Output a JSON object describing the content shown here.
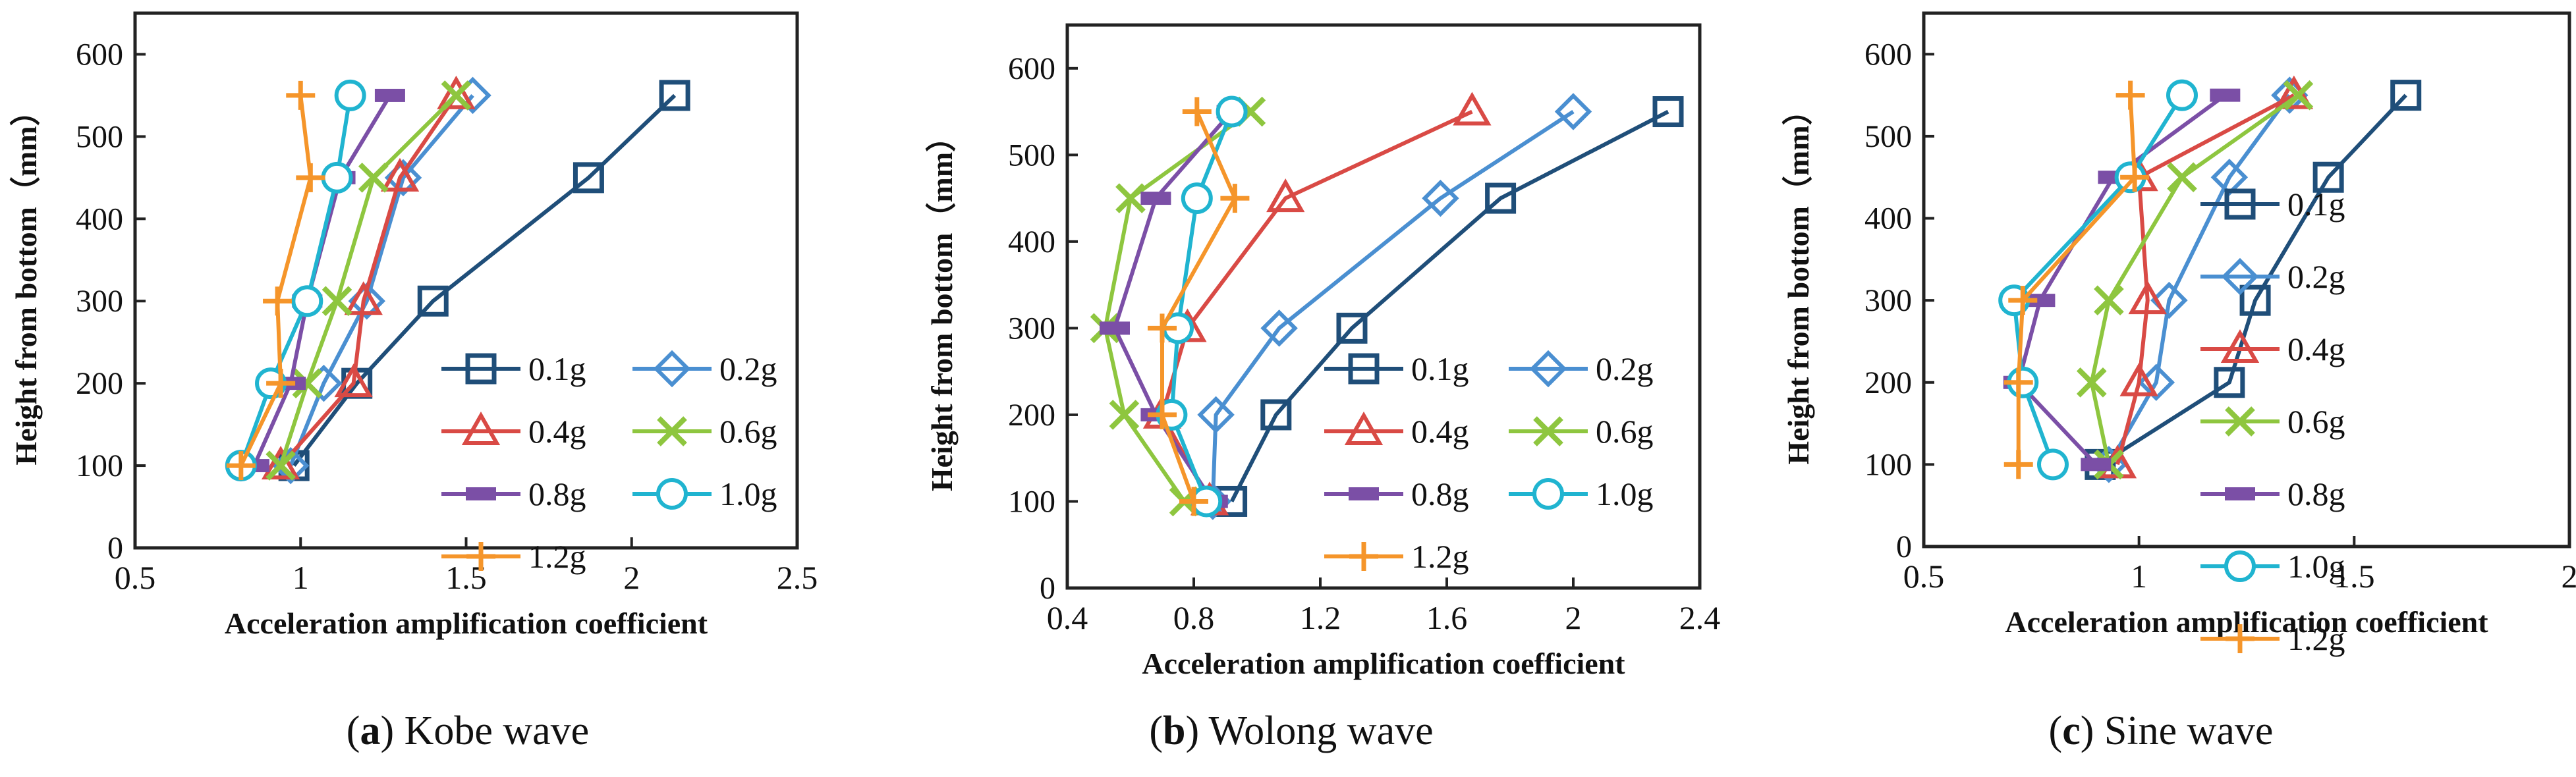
{
  "colors": {
    "0.1g": "#1f4e79",
    "0.2g": "#4a8fd1",
    "0.4g": "#d94a45",
    "0.6g": "#8ec63f",
    "0.8g": "#7b4fa6",
    "1.0g": "#20b4d0",
    "1.2g": "#f5952a",
    "axis": "#222222"
  },
  "markers": {
    "0.1g": "square",
    "0.2g": "diamond",
    "0.4g": "triangle",
    "0.6g": "x",
    "0.8g": "bar",
    "1.0g": "circle",
    "1.2g": "plus"
  },
  "chart_data": [
    {
      "type": "line",
      "id": "a",
      "caption": {
        "letter": "a",
        "text": "Kobe wave"
      },
      "xlabel": "Acceleration amplification coefficient",
      "ylabel": "Height from bottom（mm）",
      "xlim": [
        0.5,
        2.5
      ],
      "ylim": [
        0,
        650
      ],
      "xticks": [
        0.5,
        1,
        1.5,
        2,
        2.5
      ],
      "xtick_labels": [
        "0.5",
        "1",
        "1.5",
        "2",
        "2.5"
      ],
      "yticks": [
        0,
        100,
        200,
        300,
        400,
        500,
        600
      ],
      "ytick_labels": [
        "0",
        "100",
        "200",
        "300",
        "400",
        "500",
        "600"
      ],
      "legend_position": "bottom-right",
      "legend_columns": 2,
      "series": [
        {
          "name": "0.1g",
          "x": [
            0.98,
            1.17,
            1.4,
            1.87,
            2.13
          ],
          "y": [
            100,
            200,
            300,
            450,
            550
          ]
        },
        {
          "name": "0.2g",
          "x": [
            0.97,
            1.07,
            1.2,
            1.31,
            1.52
          ],
          "y": [
            100,
            200,
            300,
            450,
            550
          ]
        },
        {
          "name": "0.4g",
          "x": [
            0.94,
            1.16,
            1.19,
            1.3,
            1.47
          ],
          "y": [
            100,
            200,
            300,
            450,
            550
          ]
        },
        {
          "name": "0.6g",
          "x": [
            0.94,
            1.02,
            1.11,
            1.22,
            1.47
          ],
          "y": [
            100,
            200,
            300,
            450,
            550
          ]
        },
        {
          "name": "0.8g",
          "x": [
            0.86,
            0.97,
            1.02,
            1.12,
            1.27
          ],
          "y": [
            100,
            200,
            300,
            450,
            550
          ]
        },
        {
          "name": "1.0g",
          "x": [
            0.82,
            0.91,
            1.02,
            1.11,
            1.15
          ],
          "y": [
            100,
            200,
            300,
            450,
            550
          ]
        },
        {
          "name": "1.2g",
          "x": [
            0.82,
            0.94,
            0.93,
            1.03,
            1.0
          ],
          "y": [
            100,
            200,
            300,
            450,
            550
          ]
        }
      ]
    },
    {
      "type": "line",
      "id": "b",
      "caption": {
        "letter": "b",
        "text": "Wolong wave"
      },
      "xlabel": "Acceleration amplification coefficient",
      "ylabel": "Height from bottom（mm）",
      "xlim": [
        0.4,
        2.4
      ],
      "ylim": [
        0,
        650
      ],
      "xticks": [
        0.4,
        0.8,
        1.2,
        1.6,
        2.0,
        2.4
      ],
      "xtick_labels": [
        "0.4",
        "0.8",
        "1.2",
        "1.6",
        "2",
        "2.4"
      ],
      "yticks": [
        0,
        100,
        200,
        300,
        400,
        500,
        600
      ],
      "ytick_labels": [
        "0",
        "100",
        "200",
        "300",
        "400",
        "500",
        "600"
      ],
      "legend_position": "bottom-right",
      "legend_columns": 2,
      "series": [
        {
          "name": "0.1g",
          "x": [
            0.92,
            1.06,
            1.3,
            1.77,
            2.3
          ],
          "y": [
            100,
            200,
            300,
            450,
            550
          ]
        },
        {
          "name": "0.2g",
          "x": [
            0.86,
            0.87,
            1.07,
            1.58,
            2.0
          ],
          "y": [
            100,
            200,
            300,
            450,
            550
          ]
        },
        {
          "name": "0.4g",
          "x": [
            0.85,
            0.7,
            0.78,
            1.09,
            1.68
          ],
          "y": [
            100,
            200,
            300,
            450,
            550
          ]
        },
        {
          "name": "0.6g",
          "x": [
            0.77,
            0.58,
            0.52,
            0.6,
            0.98
          ],
          "y": [
            100,
            200,
            300,
            450,
            550
          ]
        },
        {
          "name": "0.8g",
          "x": [
            0.86,
            0.68,
            0.55,
            0.68,
            0.92
          ],
          "y": [
            100,
            200,
            300,
            450,
            550
          ]
        },
        {
          "name": "1.0g",
          "x": [
            0.84,
            0.73,
            0.75,
            0.81,
            0.92
          ],
          "y": [
            100,
            200,
            300,
            450,
            550
          ]
        },
        {
          "name": "1.2g",
          "x": [
            0.8,
            0.7,
            0.7,
            0.93,
            0.81
          ],
          "y": [
            100,
            200,
            300,
            450,
            550
          ]
        }
      ]
    },
    {
      "type": "line",
      "id": "c",
      "caption": {
        "letter": "c",
        "text": "Sine wave"
      },
      "xlabel": "Acceleration amplification coefficient",
      "ylabel": "Height from bottom（mm）",
      "xlim": [
        0.5,
        2.0
      ],
      "ylim": [
        0,
        650
      ],
      "xticks": [
        0.5,
        1,
        1.5,
        2
      ],
      "xtick_labels": [
        "0.5",
        "1",
        "1.5",
        "2"
      ],
      "yticks": [
        0,
        100,
        200,
        300,
        400,
        500,
        600
      ],
      "ytick_labels": [
        "0",
        "100",
        "200",
        "300",
        "400",
        "500",
        "600"
      ],
      "legend_position": "right",
      "legend_columns": 1,
      "series": [
        {
          "name": "0.1g",
          "x": [
            0.91,
            1.21,
            1.27,
            1.44,
            1.62
          ],
          "y": [
            100,
            200,
            300,
            450,
            550
          ]
        },
        {
          "name": "0.2g",
          "x": [
            0.93,
            1.04,
            1.07,
            1.21,
            1.35
          ],
          "y": [
            100,
            200,
            300,
            450,
            550
          ]
        },
        {
          "name": "0.4g",
          "x": [
            0.95,
            1.0,
            1.02,
            1.0,
            1.36
          ],
          "y": [
            100,
            200,
            300,
            450,
            550
          ]
        },
        {
          "name": "0.6g",
          "x": [
            0.93,
            0.89,
            0.93,
            1.1,
            1.37
          ],
          "y": [
            100,
            200,
            300,
            450,
            550
          ]
        },
        {
          "name": "0.8g",
          "x": [
            0.9,
            0.72,
            0.77,
            0.94,
            1.2
          ],
          "y": [
            100,
            200,
            300,
            450,
            550
          ]
        },
        {
          "name": "1.0g",
          "x": [
            0.8,
            0.73,
            0.71,
            0.98,
            1.1
          ],
          "y": [
            100,
            200,
            300,
            450,
            550
          ]
        },
        {
          "name": "1.2g",
          "x": [
            0.72,
            0.72,
            0.73,
            0.99,
            0.98
          ],
          "y": [
            100,
            200,
            300,
            450,
            550
          ]
        }
      ]
    }
  ]
}
